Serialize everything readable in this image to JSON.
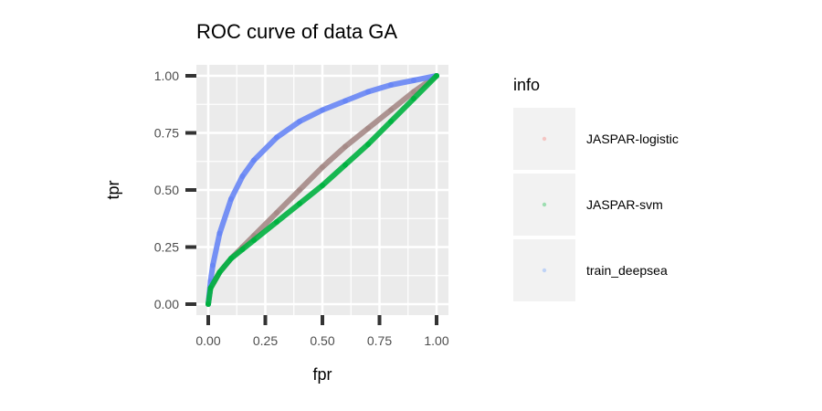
{
  "chart_data": {
    "type": "line",
    "title": "ROC curve of data GA",
    "xlabel": "fpr",
    "ylabel": "tpr",
    "xlim": [
      0,
      1
    ],
    "ylim": [
      0,
      1
    ],
    "x_ticks": [
      "0.00",
      "0.25",
      "0.50",
      "0.75",
      "1.00"
    ],
    "y_ticks": [
      "0.00",
      "0.25",
      "0.50",
      "0.75",
      "1.00"
    ],
    "grid": true,
    "legend": {
      "title": "info",
      "placement": "right"
    },
    "series": [
      {
        "name": "JASPAR-logistic",
        "color": "#a58a87",
        "legend_color": "#f8766d",
        "x": [
          0,
          0.01,
          0.05,
          0.1,
          0.15,
          0.2,
          0.3,
          0.4,
          0.5,
          0.6,
          0.7,
          0.8,
          0.9,
          1.0
        ],
        "y": [
          0,
          0.07,
          0.14,
          0.2,
          0.25,
          0.3,
          0.4,
          0.5,
          0.6,
          0.69,
          0.77,
          0.85,
          0.93,
          1.0
        ]
      },
      {
        "name": "JASPAR-svm",
        "color": "#00b140",
        "legend_color": "#00ba38",
        "x": [
          0,
          0.01,
          0.05,
          0.1,
          0.15,
          0.2,
          0.3,
          0.4,
          0.5,
          0.6,
          0.7,
          0.8,
          0.9,
          1.0
        ],
        "y": [
          0,
          0.07,
          0.14,
          0.2,
          0.24,
          0.28,
          0.36,
          0.44,
          0.52,
          0.61,
          0.7,
          0.8,
          0.9,
          1.0
        ]
      },
      {
        "name": "train_deepsea",
        "color": "#6886f5",
        "legend_color": "#619cff",
        "x": [
          0,
          0.01,
          0.02,
          0.05,
          0.1,
          0.15,
          0.2,
          0.3,
          0.4,
          0.5,
          0.6,
          0.7,
          0.8,
          0.9,
          1.0
        ],
        "y": [
          0,
          0.1,
          0.17,
          0.31,
          0.46,
          0.56,
          0.63,
          0.73,
          0.8,
          0.85,
          0.89,
          0.93,
          0.96,
          0.98,
          1.0
        ]
      }
    ]
  }
}
